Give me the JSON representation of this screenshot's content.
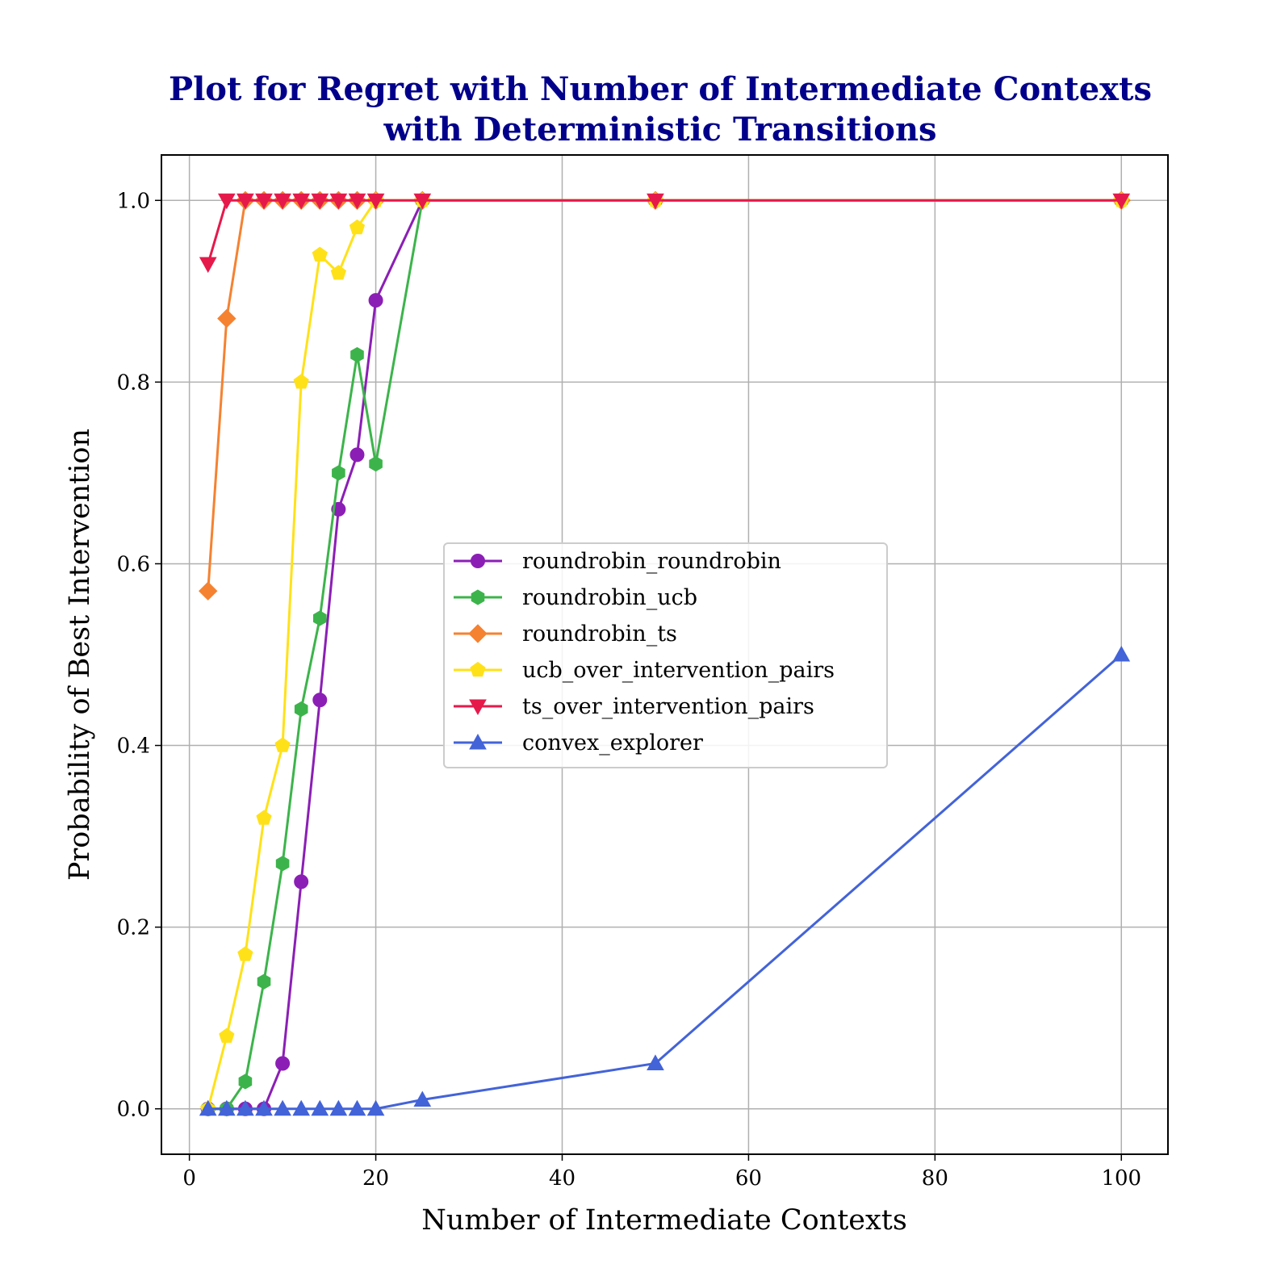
{
  "chart_data": {
    "type": "line",
    "title": "Plot for Regret with Number of Intermediate Contexts",
    "title_line2": "with Deterministic Transitions",
    "xlabel": "Number of Intermediate Contexts",
    "ylabel": "Probability of Best Intervention",
    "xlim": [
      -3,
      105
    ],
    "ylim": [
      -0.05,
      1.05
    ],
    "grid": true,
    "legend_position": "center",
    "x_ticks": [
      0,
      20,
      40,
      60,
      80,
      100
    ],
    "x_tick_labels": [
      "0",
      "20",
      "40",
      "60",
      "80",
      "100"
    ],
    "y_ticks": [
      0.0,
      0.2,
      0.4,
      0.6,
      0.8,
      1.0
    ],
    "y_tick_labels": [
      "0.0",
      "0.2",
      "0.4",
      "0.6",
      "0.8",
      "1.0"
    ],
    "x": [
      2,
      4,
      6,
      8,
      10,
      12,
      14,
      16,
      18,
      20,
      25,
      50,
      100
    ],
    "series": [
      {
        "name": "roundrobin_roundrobin",
        "color": "#8b1fb5",
        "marker": "circle",
        "values": [
          0,
          0,
          0,
          0,
          0.05,
          0.25,
          0.45,
          0.66,
          0.72,
          0.89,
          1.0,
          1.0,
          1.0
        ]
      },
      {
        "name": "roundrobin_ucb",
        "color": "#3cb44b",
        "marker": "hexagon",
        "values": [
          0,
          0,
          0.03,
          0.14,
          0.27,
          0.44,
          0.54,
          0.7,
          0.83,
          0.71,
          1.0,
          1.0,
          1.0
        ]
      },
      {
        "name": "roundrobin_ts",
        "color": "#f58231",
        "marker": "diamond",
        "values": [
          0.57,
          0.87,
          1.0,
          1.0,
          1.0,
          1.0,
          1.0,
          1.0,
          1.0,
          1.0,
          1.0,
          1.0,
          1.0
        ]
      },
      {
        "name": "ucb_over_intervention_pairs",
        "color": "#ffe119",
        "marker": "pentagon",
        "values": [
          0,
          0.08,
          0.17,
          0.32,
          0.4,
          0.8,
          0.94,
          0.92,
          0.97,
          1.0,
          1.0,
          1.0,
          1.0
        ]
      },
      {
        "name": "ts_over_intervention_pairs",
        "color": "#e6194b",
        "marker": "triangle-down",
        "values": [
          0.93,
          1.0,
          1.0,
          1.0,
          1.0,
          1.0,
          1.0,
          1.0,
          1.0,
          1.0,
          1.0,
          1.0,
          1.0
        ]
      },
      {
        "name": "convex_explorer",
        "color": "#4363d8",
        "marker": "triangle-up",
        "values": [
          0,
          0,
          0,
          0,
          0,
          0,
          0,
          0,
          0,
          0,
          0.01,
          0.05,
          0.5
        ]
      }
    ]
  }
}
